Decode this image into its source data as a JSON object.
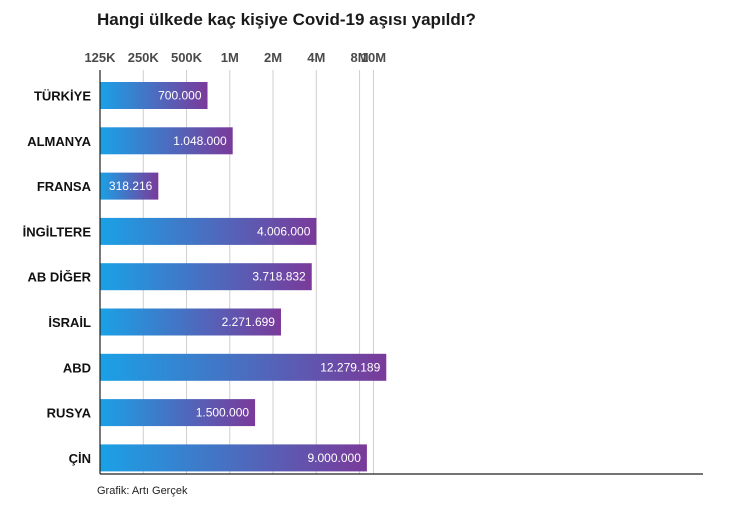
{
  "title": "Hangi ülkede kaç kişiye Covid-19 aşısı yapıldı?",
  "source": "Grafik: Artı Gerçek",
  "colors": {
    "bar_start": "#1aa1e6",
    "bar_end": "#7a3a9a",
    "grid": "#cfcfcf",
    "axis": "#222222"
  },
  "chart_data": {
    "type": "bar",
    "orientation": "horizontal",
    "scale": "log",
    "xlim": [
      125000,
      15000000
    ],
    "ticks": [
      {
        "value": 125000,
        "label": "125K"
      },
      {
        "value": 250000,
        "label": "250K"
      },
      {
        "value": 500000,
        "label": "500K"
      },
      {
        "value": 1000000,
        "label": "1M"
      },
      {
        "value": 2000000,
        "label": "2M"
      },
      {
        "value": 4000000,
        "label": "4M"
      },
      {
        "value": 8000000,
        "label": "8M"
      },
      {
        "value": 10000000,
        "label": "10M"
      }
    ],
    "categories": [
      "TÜRKİYE",
      "ALMANYA",
      "FRANSA",
      "İNGİLTERE",
      "AB DİĞER",
      "İSRAİL",
      "ABD",
      "RUSYA",
      "ÇİN"
    ],
    "values": [
      700000,
      1048000,
      318216,
      4006000,
      3718832,
      2271699,
      12279189,
      1500000,
      9000000
    ],
    "value_labels": [
      "700.000",
      "1.048.000",
      "318.216",
      "4.006.000",
      "3.718.832",
      "2.271.699",
      "12.279.189",
      "1.500.000",
      "9.000.000"
    ],
    "grid": true,
    "legend": "none"
  }
}
